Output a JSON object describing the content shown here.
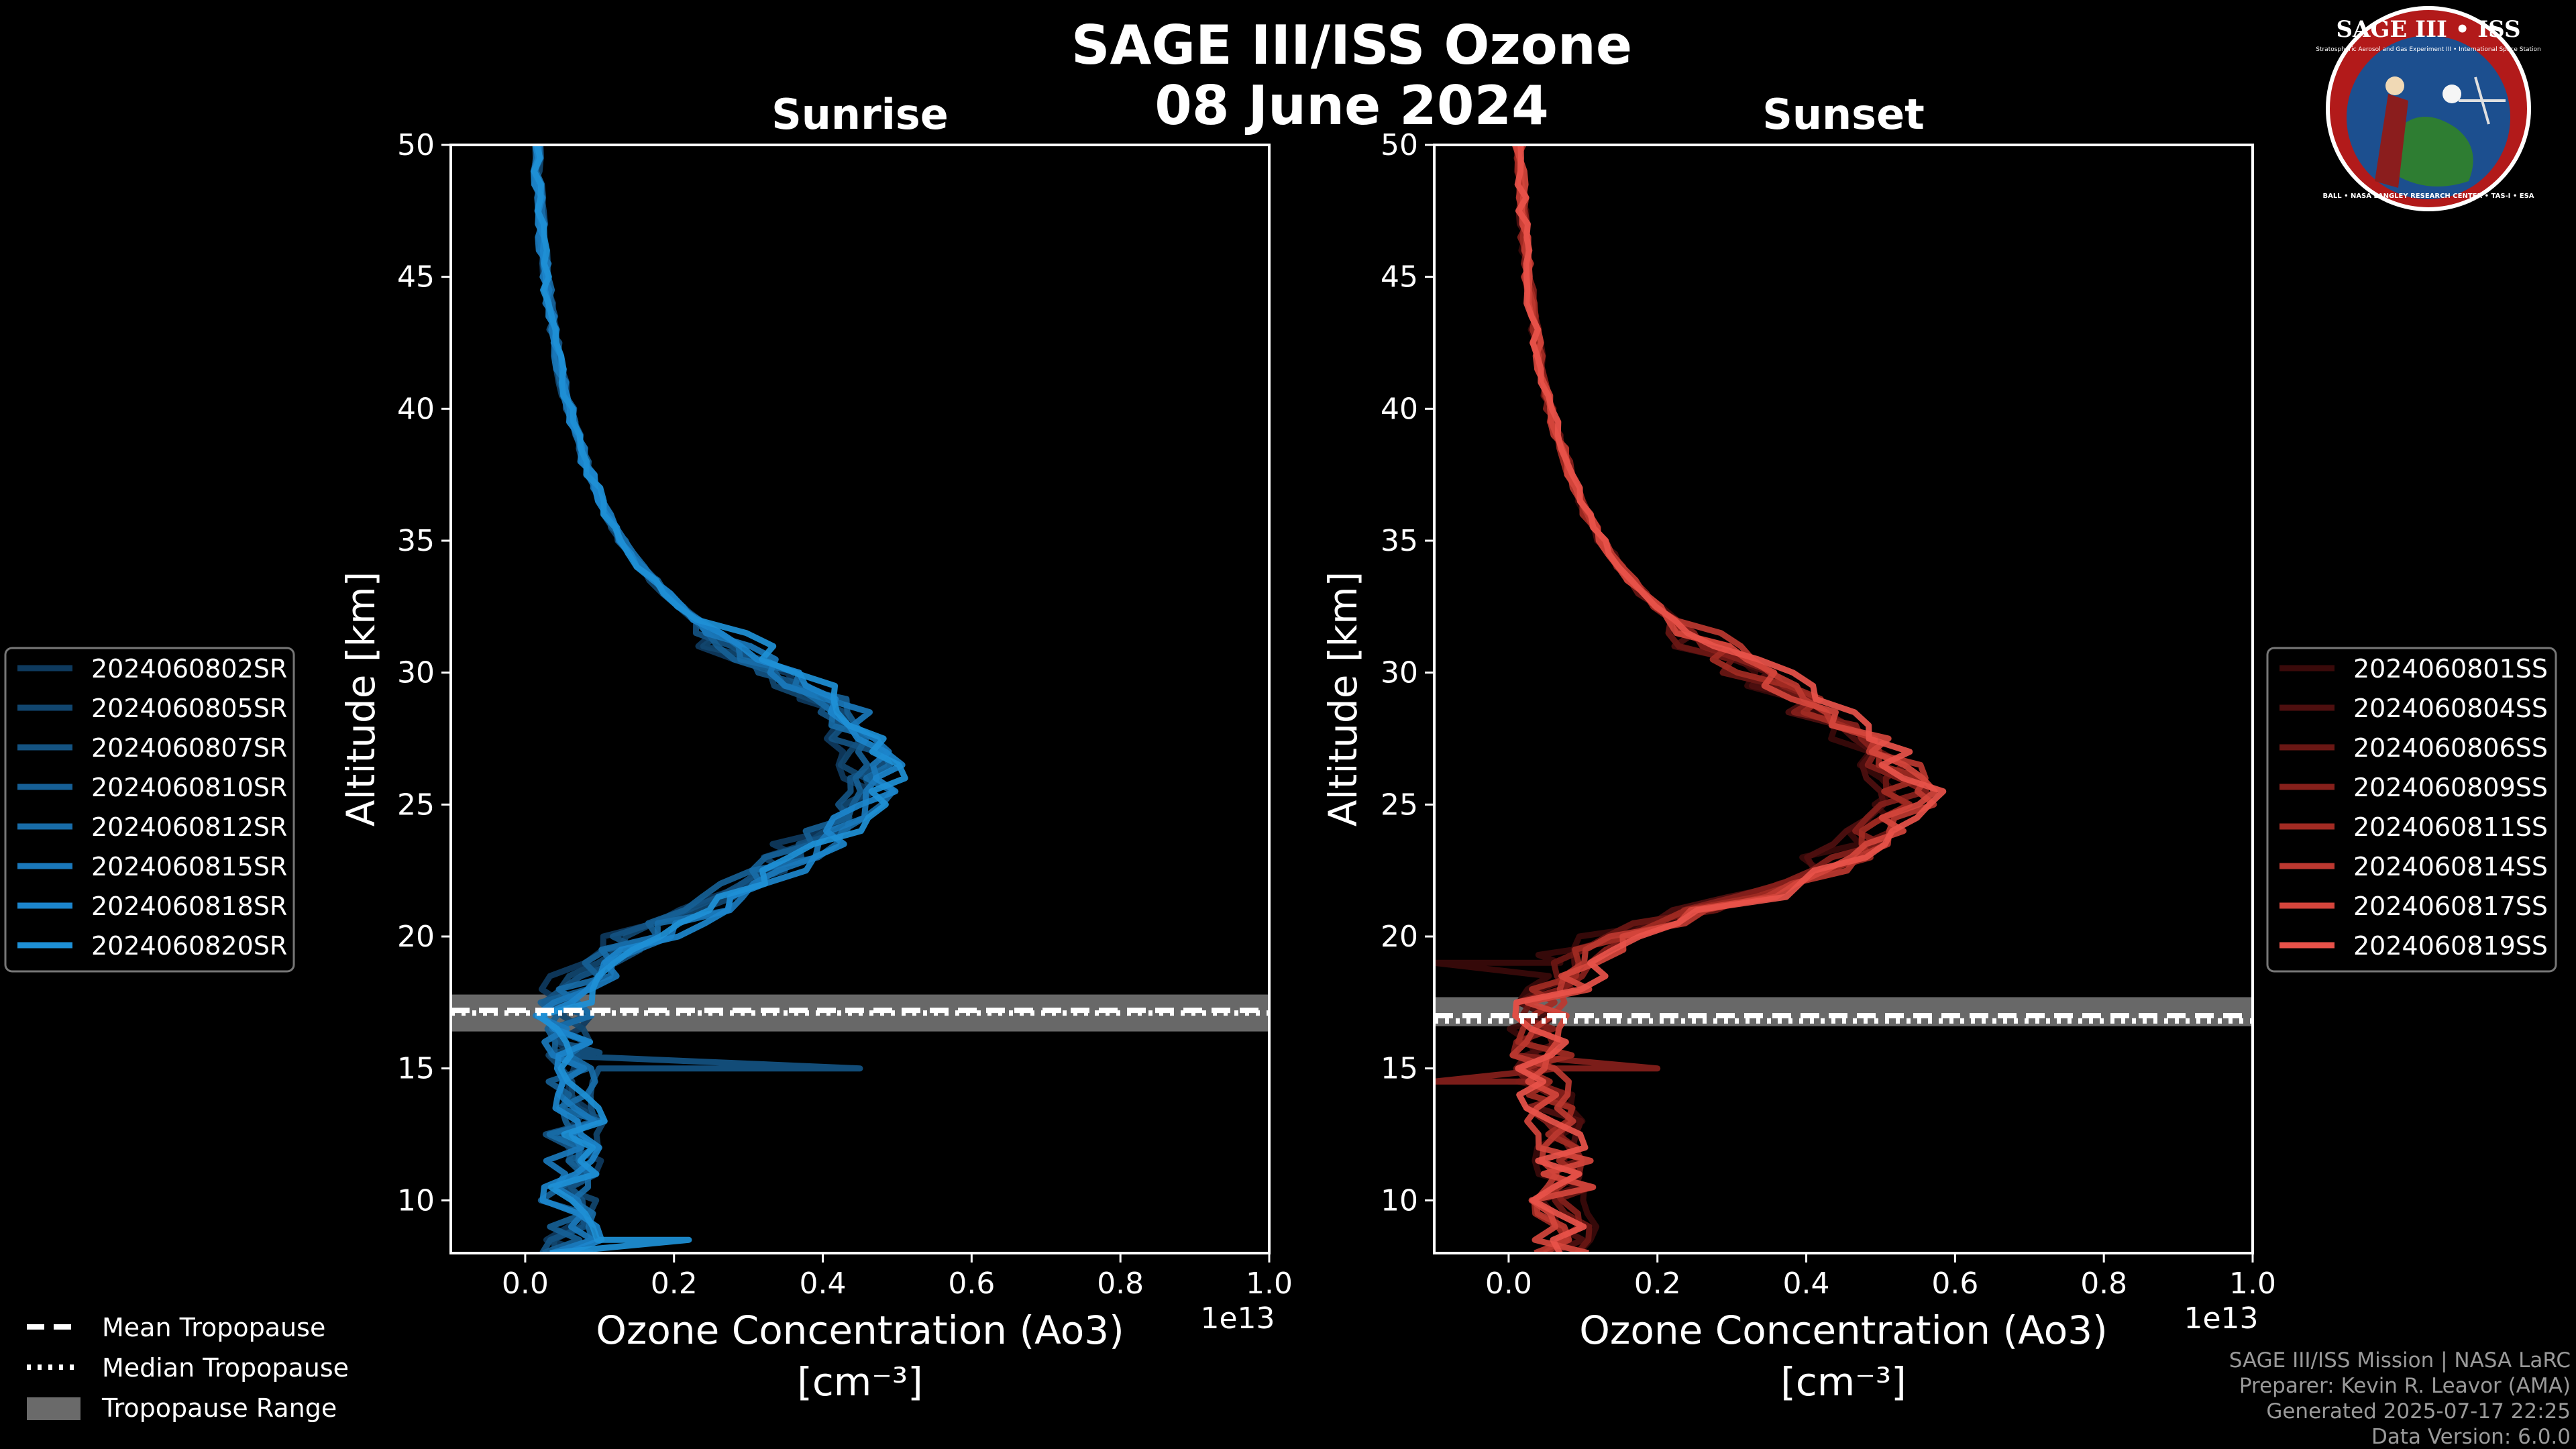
{
  "title_line1": "SAGE III/ISS Ozone",
  "title_line2": "08 June 2024",
  "logo": {
    "top_text": "SAGE III • ISS",
    "small_text": "Stratospheric Aerosol and Gas Experiment III • International Space Station",
    "ring_text": "BALL • NASA LANGLEY RESEARCH CENTER • TAS-I • ESA",
    "icon": "sage-mission-patch-icon",
    "ring_color": "#c8102e",
    "field_color": "#1c4f8f"
  },
  "shared_legend": {
    "mean": "Mean Tropopause",
    "median": "Median Tropopause",
    "range": "Tropopause Range"
  },
  "footer": {
    "line1": "SAGE III/ISS Mission | NASA LaRC",
    "line2": "Preparer: Kevin R. Leavor (AMA)",
    "line3": "Generated 2025-07-17 22:25",
    "line4": "Data Version: 6.0.0"
  },
  "chart_data": [
    {
      "type": "line",
      "title": "Sunrise",
      "xlabel_line1": "Ozone Concentration (Ao3)",
      "xlabel_line2": "[cm⁻³]",
      "ylabel": "Altitude [km]",
      "x_multiplier": "1e13",
      "xlim": [
        -0.1,
        1.0
      ],
      "ylim": [
        8,
        50
      ],
      "xticks": [
        0.0,
        0.2,
        0.4,
        0.6,
        0.8,
        1.0
      ],
      "xtick_labels": [
        "0.0",
        "0.2",
        "0.4",
        "0.6",
        "0.8",
        "1.0"
      ],
      "yticks": [
        10,
        15,
        20,
        25,
        30,
        35,
        40,
        45,
        50
      ],
      "ytick_labels": [
        "10",
        "15",
        "20",
        "25",
        "30",
        "35",
        "40",
        "45",
        "50"
      ],
      "tropopause": {
        "mean": 17.2,
        "median": 17.1,
        "range": [
          16.4,
          17.8
        ]
      },
      "base_color": "#1e90d6",
      "legend_position": "left",
      "base_profile": {
        "altitude": [
          8,
          9,
          10,
          11,
          12,
          13,
          14,
          15,
          16,
          17,
          18,
          19,
          20,
          21,
          22,
          23,
          24,
          25,
          26,
          27,
          28,
          29,
          30,
          31,
          32,
          33,
          34,
          35,
          36,
          37,
          38,
          39,
          40,
          41,
          42,
          43,
          44,
          45,
          46,
          47,
          48,
          49,
          50
        ],
        "ozone": [
          0.06,
          0.07,
          0.06,
          0.07,
          0.06,
          0.07,
          0.06,
          0.06,
          0.05,
          0.05,
          0.07,
          0.1,
          0.16,
          0.24,
          0.3,
          0.36,
          0.41,
          0.45,
          0.47,
          0.47,
          0.44,
          0.4,
          0.34,
          0.28,
          0.23,
          0.19,
          0.155,
          0.13,
          0.11,
          0.095,
          0.08,
          0.07,
          0.06,
          0.05,
          0.043,
          0.037,
          0.032,
          0.028,
          0.024,
          0.021,
          0.018,
          0.016,
          0.015
        ]
      },
      "series": [
        {
          "name": "2024060802SR",
          "color": "#0e3a5e"
        },
        {
          "name": "2024060805SR",
          "color": "#11466f"
        },
        {
          "name": "2024060807SR",
          "color": "#145382"
        },
        {
          "name": "2024060810SR",
          "color": "#165f95"
        },
        {
          "name": "2024060812SR",
          "color": "#186ca8"
        },
        {
          "name": "2024060815SR",
          "color": "#1a78bb"
        },
        {
          "name": "2024060818SR",
          "color": "#1c85cc"
        },
        {
          "name": "2024060820SR",
          "color": "#1e90d6"
        }
      ]
    },
    {
      "type": "line",
      "title": "Sunset",
      "xlabel_line1": "Ozone Concentration (Ao3)",
      "xlabel_line2": "[cm⁻³]",
      "ylabel": "Altitude [km]",
      "x_multiplier": "1e13",
      "xlim": [
        -0.1,
        1.0
      ],
      "ylim": [
        8,
        50
      ],
      "xticks": [
        0.0,
        0.2,
        0.4,
        0.6,
        0.8,
        1.0
      ],
      "xtick_labels": [
        "0.0",
        "0.2",
        "0.4",
        "0.6",
        "0.8",
        "1.0"
      ],
      "yticks": [
        10,
        15,
        20,
        25,
        30,
        35,
        40,
        45,
        50
      ],
      "ytick_labels": [
        "10",
        "15",
        "20",
        "25",
        "30",
        "35",
        "40",
        "45",
        "50"
      ],
      "tropopause": {
        "mean": 17.0,
        "median": 16.8,
        "range": [
          16.6,
          17.7
        ]
      },
      "base_color": "#e8524a",
      "legend_position": "right",
      "base_profile": {
        "altitude": [
          8,
          9,
          10,
          11,
          12,
          13,
          14,
          15,
          16,
          17,
          18,
          19,
          20,
          21,
          22,
          23,
          24,
          25,
          26,
          27,
          28,
          29,
          30,
          31,
          32,
          33,
          34,
          35,
          36,
          37,
          38,
          39,
          40,
          41,
          42,
          43,
          44,
          45,
          46,
          47,
          48,
          49,
          50
        ],
        "ozone": [
          0.07,
          0.08,
          0.07,
          0.08,
          0.07,
          0.06,
          0.05,
          0.05,
          0.04,
          0.04,
          0.06,
          0.09,
          0.15,
          0.26,
          0.38,
          0.45,
          0.5,
          0.53,
          0.53,
          0.5,
          0.45,
          0.39,
          0.33,
          0.27,
          0.22,
          0.18,
          0.15,
          0.125,
          0.105,
          0.09,
          0.077,
          0.066,
          0.056,
          0.048,
          0.041,
          0.035,
          0.03,
          0.026,
          0.023,
          0.02,
          0.018,
          0.016,
          0.014
        ]
      },
      "series": [
        {
          "name": "2024060801SS",
          "color": "#3a0a0a"
        },
        {
          "name": "2024060804SS",
          "color": "#4e0f0f"
        },
        {
          "name": "2024060806SS",
          "color": "#6a1714"
        },
        {
          "name": "2024060809SS",
          "color": "#86201b"
        },
        {
          "name": "2024060811SS",
          "color": "#a22b23"
        },
        {
          "name": "2024060814SS",
          "color": "#bc3830"
        },
        {
          "name": "2024060817SS",
          "color": "#d4453c"
        },
        {
          "name": "2024060819SS",
          "color": "#e8524a"
        }
      ]
    }
  ]
}
